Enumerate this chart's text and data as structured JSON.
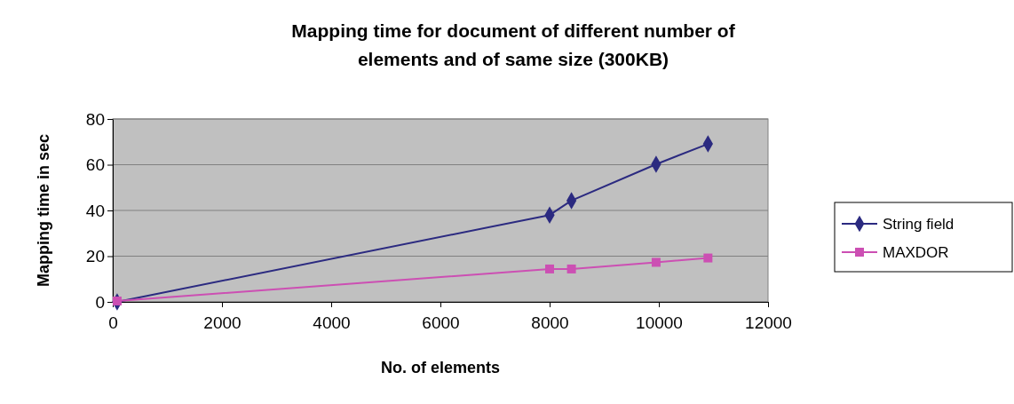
{
  "chart_data": {
    "type": "line",
    "title": "Mapping time for document of different number of elements and of same size (300KB)",
    "xlabel": "No. of elements",
    "ylabel": "Mapping time in sec",
    "xlim": [
      0,
      12000
    ],
    "xticks": [
      0,
      2000,
      4000,
      6000,
      8000,
      10000,
      12000
    ],
    "ylim": [
      0,
      80
    ],
    "yticks": [
      0,
      20,
      40,
      60,
      80
    ],
    "grid": "y",
    "legend": "right",
    "series": [
      {
        "name": "String field",
        "color": "#2b2a80",
        "marker": "diamond",
        "x": [
          80,
          8000,
          8400,
          9950,
          10900
        ],
        "values": [
          0,
          38,
          44.3,
          60.2,
          69.1
        ]
      },
      {
        "name": "MAXDOR",
        "color": "#cc4fb3",
        "marker": "square",
        "x": [
          80,
          8000,
          8400,
          9950,
          10900
        ],
        "values": [
          0.4,
          14.4,
          14.4,
          17.3,
          19.2
        ]
      }
    ]
  }
}
